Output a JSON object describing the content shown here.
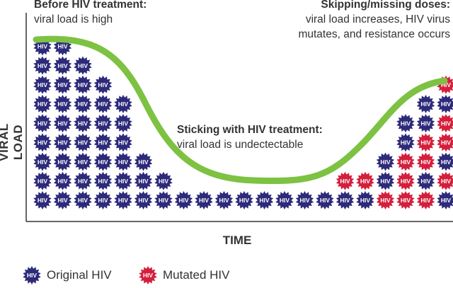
{
  "annotations": {
    "before": {
      "line1": "Before HIV treatment:",
      "line2": "viral load is high"
    },
    "skipping": {
      "line1": "Skipping/missing doses:",
      "line2": "viral load increases, HIV virus",
      "line3": "mutates, and resistance occurs"
    },
    "sticking": {
      "line1": "Sticking with HIV treatment:",
      "line2": "viral load is undectectable"
    }
  },
  "axes": {
    "y_label": "VIRAL LOAD",
    "x_label": "TIME"
  },
  "virus_label": "HIV",
  "legend": {
    "original": "Original HIV",
    "mutated": "Mutated HIV"
  },
  "colors": {
    "original": "#2d2a7a",
    "mutated": "#d41f3c",
    "curve": "#7dc242",
    "axis": "#333333"
  },
  "columns": [
    [
      "o",
      "o",
      "o",
      "o",
      "o",
      "o",
      "o",
      "o",
      "o"
    ],
    [
      "o",
      "o",
      "o",
      "o",
      "o",
      "o",
      "o",
      "o",
      "o"
    ],
    [
      "o",
      "o",
      "o",
      "o",
      "o",
      "o",
      "o",
      "o"
    ],
    [
      "o",
      "o",
      "o",
      "o",
      "o",
      "o",
      "o"
    ],
    [
      "o",
      "o",
      "o",
      "o",
      "o",
      "o"
    ],
    [
      "o",
      "o",
      "o"
    ],
    [
      "o",
      "o"
    ],
    [
      "o"
    ],
    [
      "o"
    ],
    [
      "o"
    ],
    [
      "o"
    ],
    [
      "o"
    ],
    [
      "o"
    ],
    [
      "o"
    ],
    [
      "o"
    ],
    [
      "o",
      "m"
    ],
    [
      "o",
      "m"
    ],
    [
      "m",
      "o",
      "o"
    ],
    [
      "m",
      "m",
      "m",
      "o",
      "o"
    ],
    [
      "m",
      "o",
      "m",
      "m",
      "o",
      "o"
    ],
    [
      "o",
      "m",
      "o",
      "m",
      "m",
      "o",
      "m"
    ]
  ]
}
